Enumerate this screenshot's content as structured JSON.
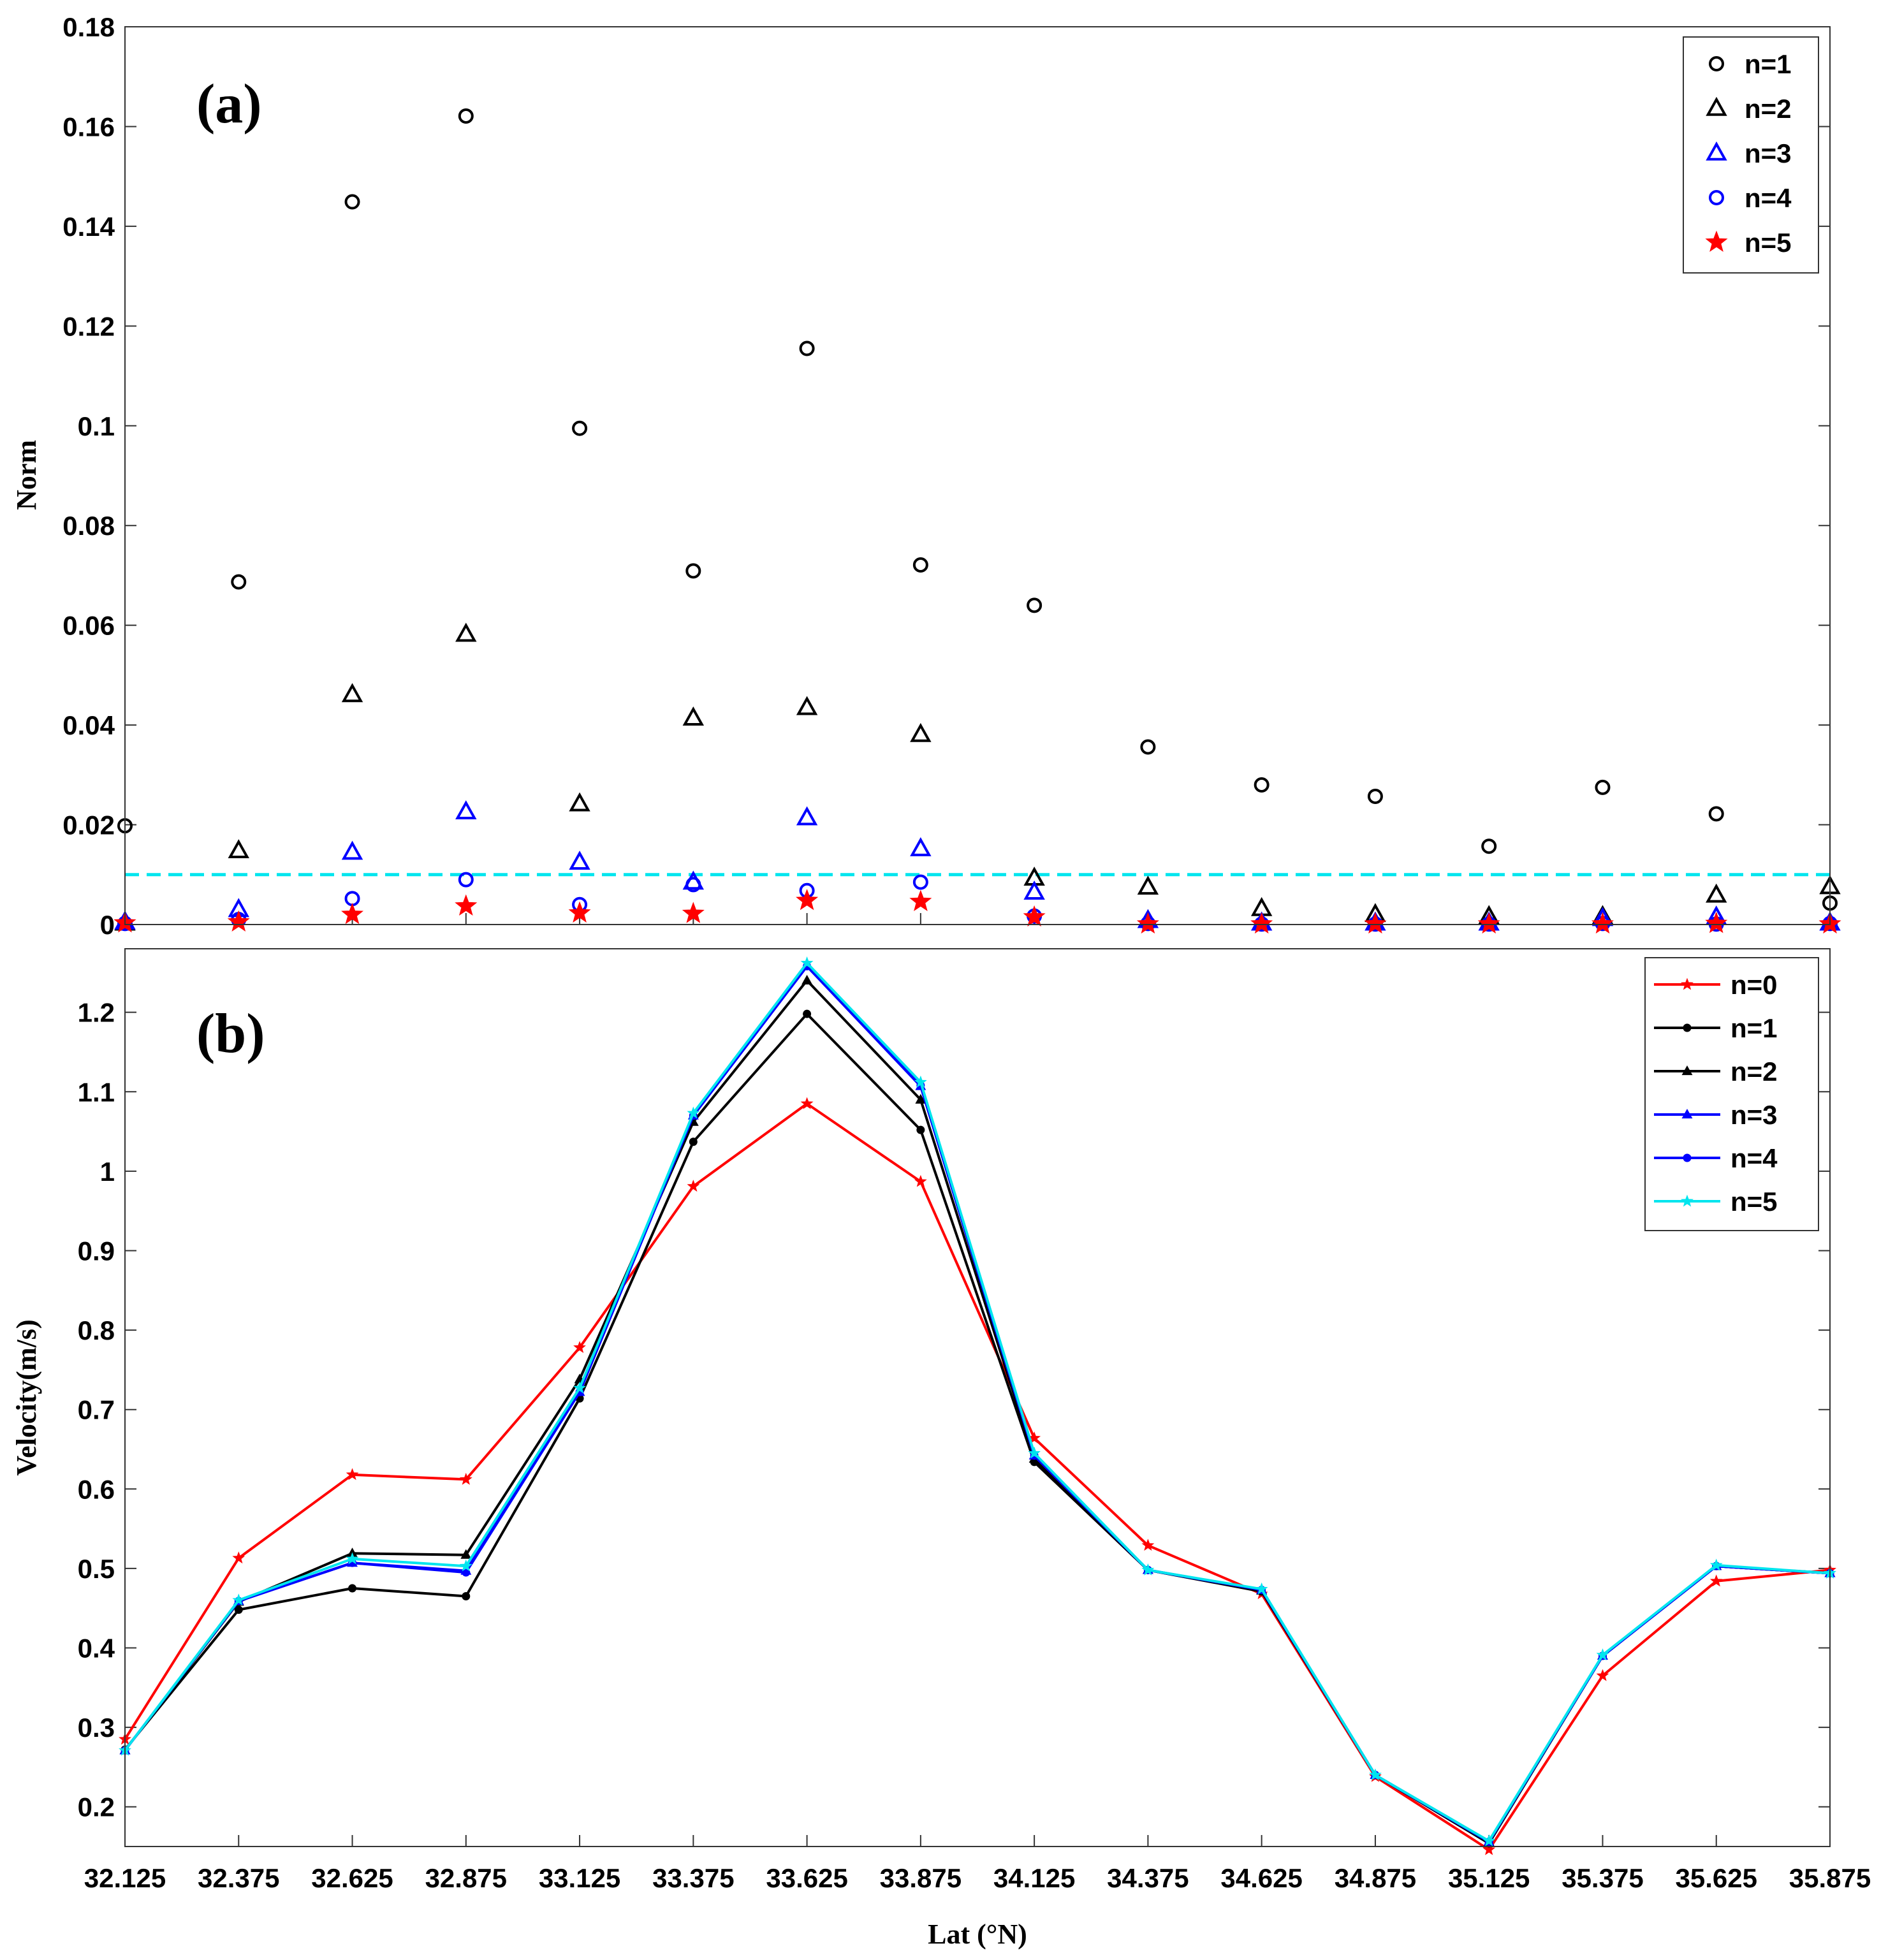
{
  "chart_data": [
    {
      "type": "scatter",
      "panel_label": "(a)",
      "ylabel": "Norm",
      "xlabel": "",
      "ylim": [
        0,
        0.18
      ],
      "yticks": [
        "0",
        "0.02",
        "0.04",
        "0.06",
        "0.08",
        "0.1",
        "0.12",
        "0.14",
        "0.16",
        "0.18"
      ],
      "ytick_values": [
        0,
        0.02,
        0.04,
        0.06,
        0.08,
        0.1,
        0.12,
        0.14,
        0.16,
        0.18
      ],
      "x": [
        32.125,
        32.375,
        32.625,
        32.875,
        33.125,
        33.375,
        33.625,
        33.875,
        34.125,
        34.375,
        34.625,
        34.875,
        35.125,
        35.375,
        35.625,
        35.875
      ],
      "threshold": 0.01,
      "threshold_color": "#00e5ee",
      "legend_position": "top-right",
      "series": [
        {
          "name": "n=1",
          "marker": "circle",
          "color": "#000000",
          "values": [
            0.0198,
            0.0687,
            0.1449,
            0.1621,
            0.0995,
            0.0709,
            0.1155,
            0.0721,
            0.064,
            0.0356,
            0.028,
            0.0257,
            0.0157,
            0.0275,
            0.0222,
            0.0043
          ]
        },
        {
          "name": "n=2",
          "marker": "triangle",
          "color": "#000000",
          "values": [
            0.0003,
            0.0148,
            0.0461,
            0.0582,
            0.0242,
            0.0414,
            0.0435,
            0.0381,
            0.0093,
            0.0075,
            0.0032,
            0.002,
            0.0016,
            0.0016,
            0.0059,
            0.0076
          ]
        },
        {
          "name": "n=3",
          "marker": "triangle",
          "color": "#0000ff",
          "values": [
            0.0005,
            0.003,
            0.0145,
            0.0226,
            0.0125,
            0.0085,
            0.0214,
            0.0152,
            0.0065,
            0.0008,
            0.0003,
            0.0003,
            0.0003,
            0.0012,
            0.0015,
            0.0003
          ]
        },
        {
          "name": "n=4",
          "marker": "circle",
          "color": "#0000ff",
          "values": [
            0.0002,
            0.001,
            0.0052,
            0.009,
            0.004,
            0.008,
            0.0068,
            0.0085,
            0.0017,
            0.0002,
            0.0001,
            0.0001,
            0.0001,
            0.0002,
            0.0001,
            0.0002
          ]
        },
        {
          "name": "n=5",
          "marker": "star",
          "color": "#ff0000",
          "values": [
            0.0003,
            0.0005,
            0.002,
            0.0037,
            0.0023,
            0.0022,
            0.0048,
            0.0046,
            0.0015,
            0.0001,
            0.0001,
            0.0001,
            0.0001,
            0.0001,
            0.0002,
            0.0001
          ]
        }
      ]
    },
    {
      "type": "line",
      "panel_label": "(b)",
      "ylabel": "Velocity(m/s)",
      "xlabel": "Lat (°N)",
      "ylim": [
        0.15,
        1.28
      ],
      "yticks": [
        "0.2",
        "0.3",
        "0.4",
        "0.5",
        "0.6",
        "0.7",
        "0.8",
        "0.9",
        "1",
        "1.1",
        "1.2"
      ],
      "ytick_values": [
        0.2,
        0.3,
        0.4,
        0.5,
        0.6,
        0.7,
        0.8,
        0.9,
        1.0,
        1.1,
        1.2
      ],
      "categories": [
        "32.125",
        "32.375",
        "32.625",
        "32.875",
        "33.125",
        "33.375",
        "33.625",
        "33.875",
        "34.125",
        "34.375",
        "34.625",
        "34.875",
        "35.125",
        "35.375",
        "35.625",
        "35.875"
      ],
      "x": [
        32.125,
        32.375,
        32.625,
        32.875,
        33.125,
        33.375,
        33.625,
        33.875,
        34.125,
        34.375,
        34.625,
        34.875,
        35.125,
        35.375,
        35.625,
        35.875
      ],
      "legend_position": "top-right",
      "series": [
        {
          "name": "n=0",
          "marker": "star",
          "color": "#ff0000",
          "values": [
            0.285,
            0.513,
            0.618,
            0.612,
            0.778,
            0.981,
            1.085,
            0.987,
            0.664,
            0.529,
            0.468,
            0.238,
            0.146,
            0.365,
            0.484,
            0.498
          ]
        },
        {
          "name": "n=1",
          "marker": "dot",
          "color": "#000000",
          "values": [
            0.272,
            0.448,
            0.475,
            0.465,
            0.714,
            1.037,
            1.198,
            1.052,
            0.634,
            0.498,
            0.471,
            0.24,
            0.154,
            0.39,
            0.503,
            0.494
          ]
        },
        {
          "name": "n=2",
          "marker": "triangle",
          "color": "#000000",
          "values": [
            0.271,
            0.458,
            0.519,
            0.517,
            0.738,
            1.062,
            1.24,
            1.09,
            0.638,
            0.498,
            0.472,
            0.24,
            0.155,
            0.39,
            0.503,
            0.494
          ]
        },
        {
          "name": "n=3",
          "marker": "triangle",
          "color": "#0000ff",
          "values": [
            0.271,
            0.459,
            0.507,
            0.497,
            0.722,
            1.07,
            1.258,
            1.107,
            0.642,
            0.498,
            0.473,
            0.24,
            0.156,
            0.39,
            0.503,
            0.494
          ]
        },
        {
          "name": "n=4",
          "marker": "dot",
          "color": "#0000ff",
          "values": [
            0.271,
            0.459,
            0.507,
            0.495,
            0.722,
            1.07,
            1.258,
            1.108,
            0.642,
            0.498,
            0.473,
            0.24,
            0.156,
            0.39,
            0.503,
            0.494
          ]
        },
        {
          "name": "n=5",
          "marker": "star",
          "color": "#00e5ee",
          "values": [
            0.271,
            0.46,
            0.512,
            0.503,
            0.727,
            1.073,
            1.262,
            1.112,
            0.645,
            0.498,
            0.474,
            0.24,
            0.157,
            0.391,
            0.504,
            0.494
          ]
        }
      ]
    }
  ]
}
